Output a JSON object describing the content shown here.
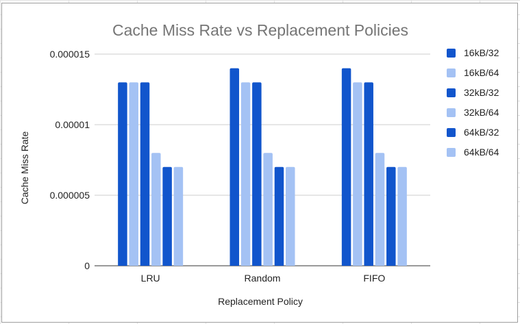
{
  "chart_data": {
    "type": "bar",
    "title": "Cache Miss Rate vs Replacement Policies",
    "xlabel": "Replacement Policy",
    "ylabel": "Cache Miss Rate",
    "categories": [
      "LRU",
      "Random",
      "FIFO"
    ],
    "ylim": [
      0,
      1.5e-05
    ],
    "yticks": [
      0,
      5e-06,
      1e-05,
      1.5e-05
    ],
    "ytick_labels": [
      "0",
      "0.000005",
      "0.00001",
      "0.000015"
    ],
    "grid": true,
    "legend_position": "right",
    "series": [
      {
        "name": "16kB/32",
        "color": "#1155cc",
        "values": [
          1.3e-05,
          1.4e-05,
          1.4e-05
        ]
      },
      {
        "name": "16kB/64",
        "color": "#a4c2f4",
        "values": [
          1.3e-05,
          1.3e-05,
          1.3e-05
        ]
      },
      {
        "name": "32kB/32",
        "color": "#1155cc",
        "values": [
          1.3e-05,
          1.3e-05,
          1.3e-05
        ]
      },
      {
        "name": "32kB/64",
        "color": "#a4c2f4",
        "values": [
          8e-06,
          8e-06,
          8e-06
        ]
      },
      {
        "name": "64kB/32",
        "color": "#1155cc",
        "values": [
          7e-06,
          7e-06,
          7e-06
        ]
      },
      {
        "name": "64kB/64",
        "color": "#a4c2f4",
        "values": [
          7e-06,
          7e-06,
          7e-06
        ]
      }
    ]
  }
}
